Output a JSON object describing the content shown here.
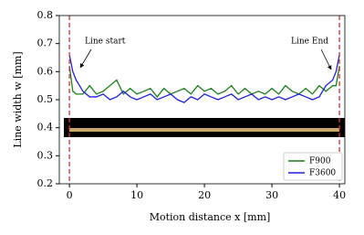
{
  "chart_data": {
    "type": "line",
    "x_label": "Motion distance x [mm]",
    "y_label": "Line width w [mm]",
    "x": [
      0,
      0.5,
      1,
      2,
      3,
      4,
      5,
      6,
      7,
      8,
      9,
      10,
      11,
      12,
      13,
      14,
      15,
      16,
      17,
      18,
      19,
      20,
      21,
      22,
      23,
      24,
      25,
      26,
      27,
      28,
      29,
      30,
      31,
      32,
      33,
      34,
      35,
      36,
      37,
      38,
      39,
      39.5,
      40
    ],
    "series": [
      {
        "name": "F900",
        "color": "#1a7f1a",
        "values": [
          0.62,
          0.53,
          0.52,
          0.52,
          0.55,
          0.52,
          0.53,
          0.55,
          0.57,
          0.52,
          0.54,
          0.52,
          0.53,
          0.54,
          0.51,
          0.54,
          0.52,
          0.53,
          0.54,
          0.52,
          0.55,
          0.53,
          0.54,
          0.52,
          0.53,
          0.55,
          0.52,
          0.54,
          0.52,
          0.53,
          0.52,
          0.54,
          0.52,
          0.55,
          0.53,
          0.52,
          0.54,
          0.52,
          0.55,
          0.53,
          0.55,
          0.55,
          0.62
        ]
      },
      {
        "name": "F3600",
        "color": "#1f1fe0",
        "values": [
          0.66,
          0.6,
          0.57,
          0.53,
          0.51,
          0.51,
          0.52,
          0.5,
          0.51,
          0.53,
          0.51,
          0.5,
          0.51,
          0.52,
          0.5,
          0.51,
          0.52,
          0.5,
          0.49,
          0.51,
          0.5,
          0.52,
          0.51,
          0.5,
          0.51,
          0.52,
          0.5,
          0.51,
          0.52,
          0.5,
          0.51,
          0.5,
          0.51,
          0.5,
          0.51,
          0.52,
          0.51,
          0.5,
          0.51,
          0.55,
          0.57,
          0.6,
          0.66
        ]
      }
    ],
    "vlines": [
      0,
      40
    ],
    "vline_color": "#e0302a",
    "annotations": [
      "Line start",
      "Line End"
    ],
    "xlim": [
      -1.5,
      40.8
    ],
    "ylim": [
      0.2,
      0.8
    ],
    "xticks": [
      0,
      10,
      20,
      30,
      40
    ],
    "yticks": [
      0.2,
      0.3,
      0.4,
      0.5,
      0.6,
      0.7,
      0.8
    ],
    "legend": "lower right"
  }
}
